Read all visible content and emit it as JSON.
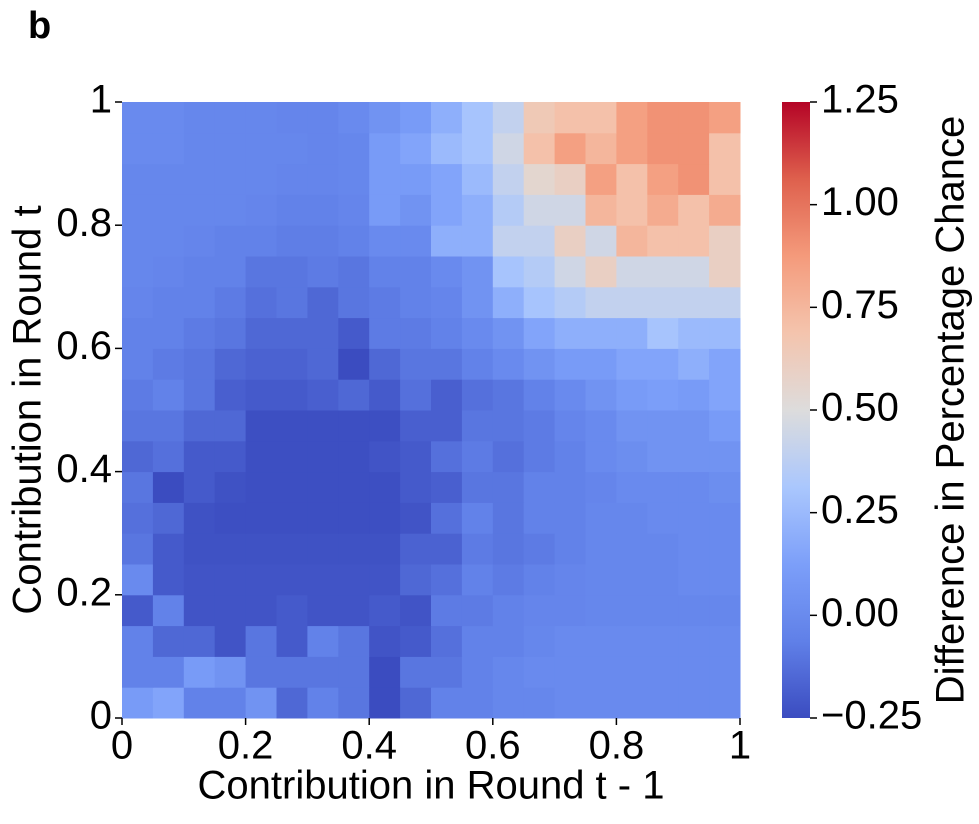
{
  "panel_label": "b",
  "chart_data": {
    "type": "heatmap",
    "xlabel": "Contribution in Round t - 1",
    "ylabel": "Contribution in Round t",
    "colorbar_label": "Difference in Percentage Chance",
    "colormap": "coolwarm",
    "xlim": [
      0,
      1
    ],
    "ylim": [
      0,
      1
    ],
    "xticks": [
      0,
      0.2,
      0.4,
      0.6,
      0.8,
      1
    ],
    "yticks": [
      0,
      0.2,
      0.4,
      0.6,
      0.8,
      1
    ],
    "clim": [
      -0.25,
      1.25
    ],
    "cticks": [
      {
        "value": -0.25,
        "label": "−0.25"
      },
      {
        "value": 0,
        "label": "0.00"
      },
      0.25,
      {
        "value": 0.5,
        "label": "0.50"
      },
      0.75,
      {
        "value": 1,
        "label": "1.00"
      },
      1.25
    ],
    "z": [
      [
        0.1,
        0.15,
        -0.05,
        -0.05,
        0.05,
        -0.15,
        -0.05,
        -0.1,
        -0.25,
        -0.15,
        -0.05,
        -0.05,
        -0.02,
        -0.02,
        0,
        0,
        0,
        0,
        0,
        0
      ],
      [
        -0.05,
        -0.05,
        0.1,
        0.05,
        -0.1,
        -0.1,
        -0.1,
        -0.1,
        -0.25,
        -0.1,
        -0.1,
        -0.05,
        -0.02,
        0,
        0,
        0,
        0,
        0,
        0,
        0
      ],
      [
        -0.05,
        -0.15,
        -0.15,
        -0.22,
        -0.1,
        -0.2,
        -0.05,
        -0.1,
        -0.22,
        -0.2,
        -0.12,
        -0.05,
        -0.05,
        -0.02,
        0,
        0,
        0,
        0,
        0,
        0
      ],
      [
        -0.2,
        -0.05,
        -0.22,
        -0.22,
        -0.22,
        -0.2,
        -0.22,
        -0.22,
        -0.2,
        -0.22,
        -0.08,
        -0.08,
        -0.05,
        -0.03,
        -0.03,
        -0.02,
        -0.02,
        -0.02,
        -0.02,
        -0.02
      ],
      [
        0,
        -0.2,
        -0.22,
        -0.22,
        -0.22,
        -0.22,
        -0.22,
        -0.22,
        -0.22,
        -0.15,
        -0.12,
        -0.05,
        -0.08,
        -0.05,
        -0.03,
        -0.02,
        -0.02,
        -0.02,
        0,
        0
      ],
      [
        -0.1,
        -0.2,
        -0.23,
        -0.23,
        -0.23,
        -0.23,
        -0.23,
        -0.23,
        -0.23,
        -0.17,
        -0.17,
        -0.08,
        -0.1,
        -0.08,
        -0.05,
        -0.02,
        -0.02,
        -0.02,
        0,
        0
      ],
      [
        -0.12,
        -0.15,
        -0.23,
        -0.24,
        -0.24,
        -0.24,
        -0.24,
        -0.24,
        -0.24,
        -0.22,
        -0.12,
        -0.05,
        -0.1,
        -0.05,
        -0.05,
        -0.02,
        -0.02,
        0,
        0,
        0
      ],
      [
        -0.1,
        -0.25,
        -0.2,
        -0.23,
        -0.24,
        -0.24,
        -0.24,
        -0.24,
        -0.24,
        -0.2,
        -0.18,
        -0.1,
        -0.1,
        -0.05,
        -0.05,
        -0.03,
        0,
        0,
        0,
        0.02
      ],
      [
        -0.15,
        -0.12,
        -0.2,
        -0.2,
        -0.24,
        -0.24,
        -0.24,
        -0.24,
        -0.22,
        -0.2,
        -0.12,
        -0.08,
        -0.12,
        -0.08,
        -0.05,
        0,
        0.02,
        0.05,
        0.05,
        0.05
      ],
      [
        -0.1,
        -0.1,
        -0.15,
        -0.15,
        -0.24,
        -0.24,
        -0.24,
        -0.24,
        -0.24,
        -0.18,
        -0.18,
        -0.1,
        -0.1,
        -0.08,
        -0.03,
        0,
        0.05,
        0.05,
        0.05,
        0.1
      ],
      [
        -0.08,
        -0.05,
        -0.1,
        -0.18,
        -0.2,
        -0.2,
        -0.18,
        -0.15,
        -0.2,
        -0.12,
        -0.18,
        -0.12,
        -0.1,
        -0.05,
        0,
        0.05,
        0.1,
        0.12,
        0.1,
        0.15
      ],
      [
        -0.05,
        -0.08,
        -0.1,
        -0.15,
        -0.17,
        -0.17,
        -0.15,
        -0.25,
        -0.15,
        -0.1,
        -0.1,
        -0.05,
        0,
        0.05,
        0.1,
        0.1,
        0.15,
        0.15,
        0.2,
        0.15
      ],
      [
        -0.05,
        -0.05,
        -0.08,
        -0.1,
        -0.15,
        -0.15,
        -0.15,
        -0.2,
        -0.08,
        -0.08,
        -0.05,
        0,
        0.05,
        0.15,
        0.2,
        0.2,
        0.2,
        0.3,
        0.25,
        0.25
      ],
      [
        -0.03,
        -0.05,
        -0.05,
        -0.08,
        -0.12,
        -0.1,
        -0.15,
        -0.1,
        -0.08,
        -0.05,
        -0.03,
        0.05,
        0.2,
        0.3,
        0.35,
        0.4,
        0.4,
        0.4,
        0.4,
        0.4
      ],
      [
        -0.02,
        -0.03,
        -0.05,
        -0.05,
        -0.1,
        -0.1,
        -0.08,
        -0.1,
        -0.05,
        -0.05,
        0,
        0.05,
        0.3,
        0.35,
        0.45,
        0.6,
        0.45,
        0.45,
        0.45,
        0.6
      ],
      [
        -0.02,
        -0.02,
        -0.03,
        -0.05,
        -0.05,
        -0.07,
        -0.07,
        -0.05,
        0,
        0,
        0.2,
        0.2,
        0.4,
        0.4,
        0.6,
        0.45,
        0.75,
        0.7,
        0.7,
        0.6
      ],
      [
        -0.02,
        -0.02,
        -0.02,
        -0.02,
        -0.03,
        -0.05,
        -0.05,
        -0.03,
        0.1,
        0.05,
        0.15,
        0.2,
        0.35,
        0.45,
        0.45,
        0.75,
        0.7,
        0.8,
        0.7,
        0.8
      ],
      [
        -0.02,
        -0.02,
        -0.02,
        -0.02,
        -0.02,
        -0.03,
        -0.03,
        -0.02,
        0.1,
        0.1,
        0.15,
        0.25,
        0.4,
        0.55,
        0.6,
        0.85,
        0.7,
        0.85,
        0.9,
        0.7
      ],
      [
        0,
        0,
        -0.02,
        -0.02,
        -0.02,
        -0.02,
        -0.03,
        -0.02,
        0.1,
        0.15,
        0.25,
        0.3,
        0.45,
        0.7,
        0.85,
        0.75,
        0.85,
        0.9,
        0.9,
        0.7
      ],
      [
        0,
        0,
        -0.02,
        -0.02,
        -0.02,
        -0.03,
        -0.03,
        0,
        0.05,
        0.1,
        0.2,
        0.3,
        0.4,
        0.65,
        0.7,
        0.7,
        0.85,
        0.9,
        0.9,
        0.85
      ]
    ]
  }
}
